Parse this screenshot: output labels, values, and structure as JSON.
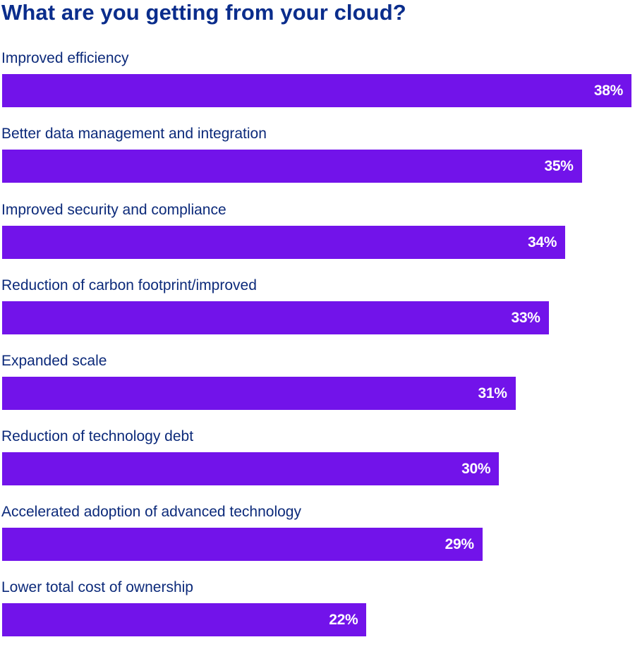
{
  "title": "What are you getting from your cloud?",
  "colors": {
    "bar": "#7213ea",
    "title": "#0a2d8c",
    "label": "#0c2a7a",
    "value_text": "#ffffff"
  },
  "chart_data": {
    "type": "bar",
    "orientation": "horizontal",
    "title": "What are you getting from your cloud?",
    "xlabel": "",
    "ylabel": "",
    "unit": "%",
    "grid": false,
    "legend": null,
    "categories": [
      "Improved efficiency",
      "Better data management and integration",
      "Improved security and compliance",
      "Reduction of carbon footprint/improved",
      "Expanded scale",
      "Reduction of technology debt",
      "Accelerated adoption of advanced technology",
      "Lower total cost of ownership"
    ],
    "values": [
      38,
      35,
      34,
      33,
      31,
      30,
      29,
      22
    ],
    "value_labels": [
      "38%",
      "35%",
      "34%",
      "33%",
      "31%",
      "30%",
      "29%",
      "22%"
    ],
    "xlim": [
      0,
      38
    ]
  },
  "bars": [
    {
      "label": "Improved efficiency",
      "value": 38,
      "value_label": "38%"
    },
    {
      "label": "Better data management and integration",
      "value": 35,
      "value_label": "35%"
    },
    {
      "label": "Improved security and compliance",
      "value": 34,
      "value_label": "34%"
    },
    {
      "label": "Reduction of carbon footprint/improved",
      "value": 33,
      "value_label": "33%"
    },
    {
      "label": "Expanded scale",
      "value": 31,
      "value_label": "31%"
    },
    {
      "label": "Reduction of technology debt",
      "value": 30,
      "value_label": "30%"
    },
    {
      "label": "Accelerated adoption of advanced technology",
      "value": 29,
      "value_label": "29%"
    },
    {
      "label": "Lower total cost of ownership",
      "value": 22,
      "value_label": "22%"
    }
  ]
}
